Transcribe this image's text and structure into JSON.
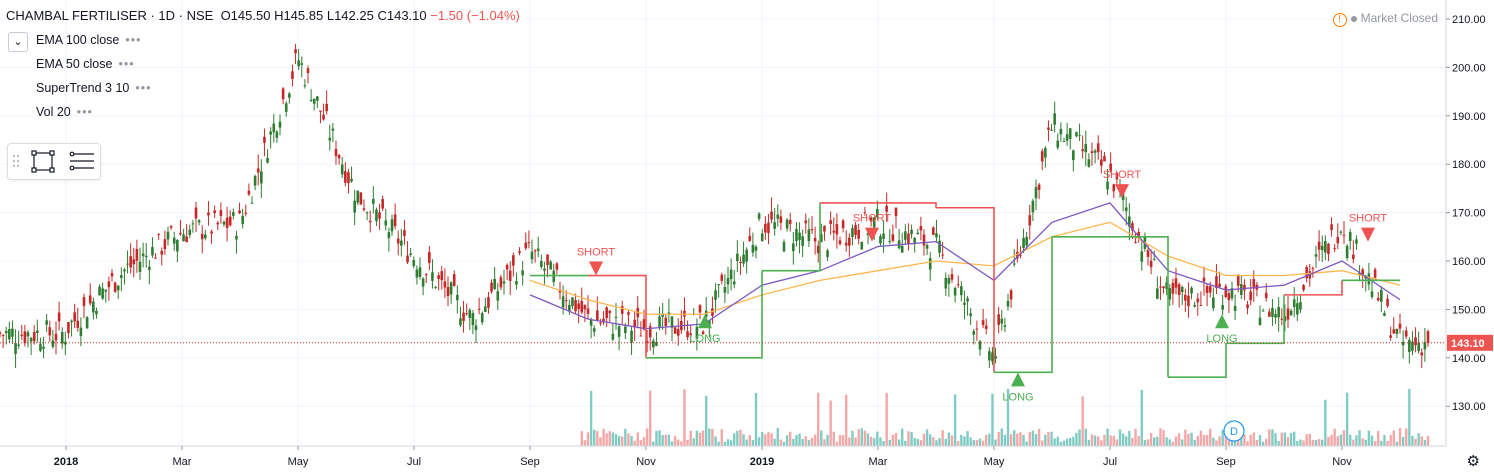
{
  "header": {
    "symbol": "CHAMBAL FERTILISER · 1D · NSE",
    "open": "O145.50",
    "high": "H145.85",
    "low": "L142.25",
    "close": "C143.10",
    "change": "−1.50 (−1.04%)"
  },
  "indicators": [
    {
      "label": "EMA 100 close"
    },
    {
      "label": "EMA 50 close"
    },
    {
      "label": "SuperTrend 3 10"
    },
    {
      "label": "Vol 20"
    }
  ],
  "market_status": "Market Closed",
  "price_axis": {
    "ticks": [
      "210.00",
      "200.00",
      "190.00",
      "180.00",
      "170.00",
      "160.00",
      "150.00",
      "140.00",
      "130.00"
    ],
    "last_price": "143.10"
  },
  "time_axis": {
    "labels": [
      "2018",
      "Mar",
      "May",
      "Jul",
      "Sep",
      "Nov",
      "2019",
      "Mar",
      "May",
      "Jul",
      "Sep",
      "Nov"
    ]
  },
  "signals": [
    {
      "text": "SHORT"
    },
    {
      "text": "LONG"
    },
    {
      "text": "SHORT"
    },
    {
      "text": "LONG"
    },
    {
      "text": "SHORT"
    },
    {
      "text": "LONG"
    },
    {
      "text": "SHORT"
    }
  ],
  "event_marker": "D",
  "colors": {
    "up": "#26a69a",
    "down": "#ef5350",
    "candle_up": "#2e7d32",
    "candle_down": "#c62828",
    "st_up": "#4caf50",
    "st_down": "#ef5350",
    "ema100": "#ffb74d",
    "ema50": "#7e57c2"
  },
  "chart_data": {
    "type": "candlestick",
    "ylim": [
      122,
      214
    ],
    "x": [
      "2018-01",
      "2018-02",
      "2018-03",
      "2018-04",
      "2018-05",
      "2018-06",
      "2018-07",
      "2018-08",
      "2018-09",
      "2018-10",
      "2018-11",
      "2018-12",
      "2019-01",
      "2019-02",
      "2019-03",
      "2019-04",
      "2019-05",
      "2019-06",
      "2019-07",
      "2019-08",
      "2019-09",
      "2019-10",
      "2019-11",
      "2019-12"
    ],
    "close": [
      146,
      158,
      166,
      168,
      202,
      174,
      161,
      148,
      162,
      148,
      146,
      147,
      168,
      164,
      168,
      163,
      140,
      188,
      178,
      152,
      154,
      149,
      168,
      143.1
    ],
    "series": [
      {
        "name": "EMA 100 close",
        "values": [
          null,
          null,
          null,
          null,
          null,
          null,
          null,
          null,
          156,
          152,
          149,
          149,
          153,
          156,
          158,
          160,
          159,
          165,
          168,
          161,
          157,
          157,
          158,
          155
        ]
      },
      {
        "name": "EMA 50 close",
        "values": [
          null,
          null,
          null,
          null,
          null,
          null,
          null,
          null,
          153,
          148,
          146,
          147,
          155,
          158,
          163,
          164,
          156,
          168,
          172,
          158,
          154,
          155,
          160,
          152
        ]
      },
      {
        "name": "SuperTrend 3 10",
        "values": [
          null,
          null,
          null,
          null,
          null,
          null,
          null,
          null,
          157,
          157,
          140,
          140,
          158,
          172,
          172,
          171,
          137,
          165,
          165,
          136,
          143,
          153,
          156,
          156
        ]
      }
    ]
  }
}
